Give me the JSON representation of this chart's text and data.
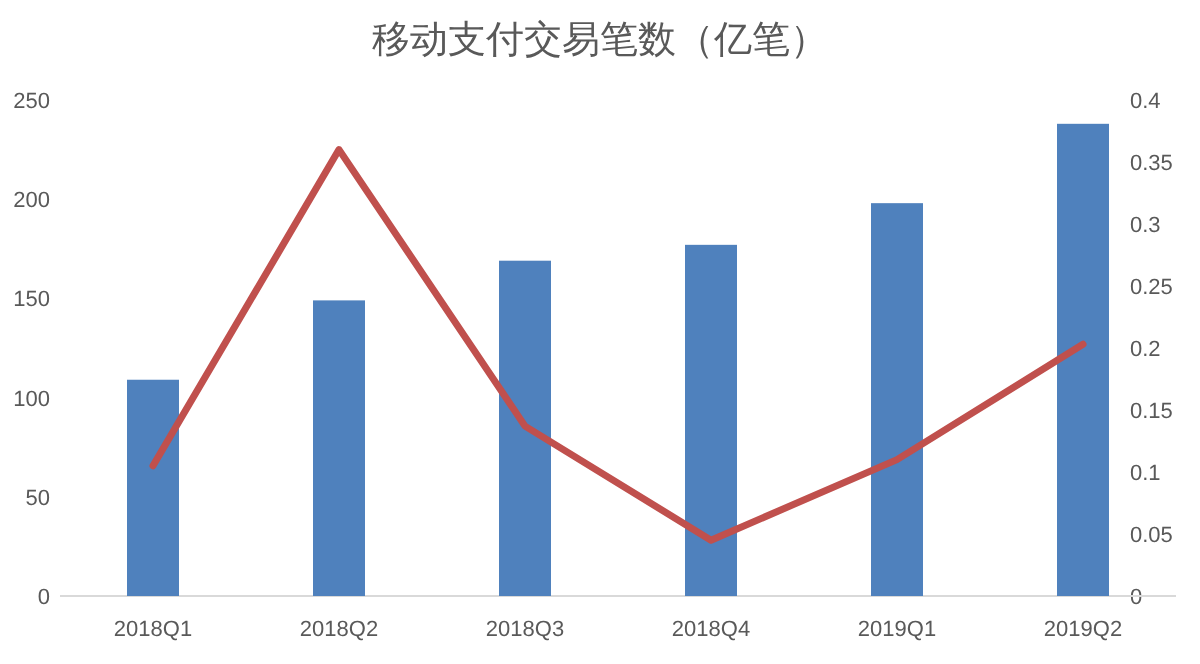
{
  "chart_data": {
    "type": "bar",
    "title": "移动支付交易笔数（亿笔）",
    "categories": [
      "2018Q1",
      "2018Q2",
      "2018Q3",
      "2018Q4",
      "2019Q1",
      "2019Q2"
    ],
    "series": [
      {
        "color": "#4f81bd",
        "values": [
          109,
          149,
          169,
          177,
          198,
          238
        ]
      },
      {
        "type": "line",
        "color": "#c0504d",
        "axis": "y2",
        "values": [
          0.105,
          0.36,
          0.137,
          0.045,
          0.11,
          0.203
        ]
      }
    ],
    "ylim": [
      0,
      250
    ],
    "yticks": [
      0,
      50,
      100,
      150,
      200,
      250
    ],
    "y2lim": [
      0,
      0.4
    ],
    "y2ticks": [
      0,
      0.05,
      0.1,
      0.15,
      0.2,
      0.25,
      0.3,
      0.35,
      0.4
    ]
  }
}
